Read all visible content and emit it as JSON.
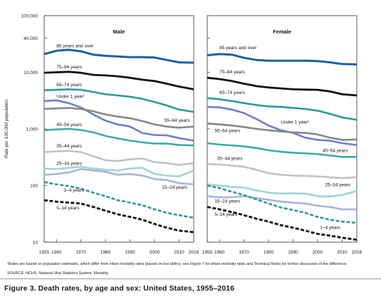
{
  "chart_data": {
    "type": "line",
    "caption": "Figure 3. Death rates, by age and sex: United States, 1955–2016",
    "ylabel": "Rate per 100,000 population",
    "yscale": "log",
    "ylim": [
      10,
      100000
    ],
    "yticks": [
      {
        "value": 10,
        "label": "10"
      },
      {
        "value": 100,
        "label": "100"
      },
      {
        "value": 1000,
        "label": "1,000"
      },
      {
        "value": 10000,
        "label": "10,000"
      },
      {
        "value": 40000,
        "label": "40,000"
      },
      {
        "value": 100000,
        "label": "100,000"
      }
    ],
    "xlim": [
      1955,
      2016
    ],
    "xticks": [
      {
        "value": 1955,
        "label": "1955"
      },
      {
        "value": 1960,
        "label": "1960"
      },
      {
        "value": 1970,
        "label": "1970"
      },
      {
        "value": 1980,
        "label": "1980"
      },
      {
        "value": 1990,
        "label": "1990"
      },
      {
        "value": 2000,
        "label": "2000"
      },
      {
        "value": 2010,
        "label": "2010"
      },
      {
        "value": 2016,
        "label": "2016"
      }
    ],
    "grid": false,
    "x": [
      1955,
      1960,
      1965,
      1970,
      1975,
      1980,
      1985,
      1990,
      1995,
      2000,
      2005,
      2010,
      2016
    ],
    "panels": [
      {
        "title": "Male",
        "series": [
          {
            "name": "85 years and over",
            "color": "#2060a0",
            "width": 3,
            "dash": "solid",
            "values": [
              21000,
              24000,
              25000,
              23500,
              20500,
              19500,
              19000,
              18500,
              18500,
              18200,
              16500,
              15000,
              14800
            ]
          },
          {
            "name": "75–84 years",
            "color": "#111111",
            "width": 2.8,
            "dash": "solid",
            "values": [
              9800,
              10000,
              10200,
              9800,
              9000,
              8800,
              8500,
              8000,
              7400,
              7000,
              6300,
              5600,
              5000
            ]
          },
          {
            "name": "65–74 years",
            "color": "#2a9b97",
            "width": 2.6,
            "dash": "solid",
            "values": [
              4800,
              4900,
              5000,
              4900,
              4500,
              4100,
              3900,
              3700,
              3400,
              3000,
              2600,
              2200,
              2000
            ]
          },
          {
            "name": "Under 1 year¹",
            "color": "#6f7fc8",
            "width": 2.6,
            "dash": "solid",
            "values": [
              3100,
              3200,
              2850,
              2400,
              1800,
              1400,
              1200,
              1100,
              850,
              780,
              770,
              690,
              620
            ]
          },
          {
            "name": "55–64 years",
            "color": "#888888",
            "width": 2.6,
            "dash": "solid",
            "values": [
              2250,
              2300,
              2350,
              2250,
              2050,
              1800,
              1650,
              1550,
              1380,
              1200,
              1100,
              1050,
              1100
            ]
          },
          {
            "name": "45–54 years",
            "color": "#3aaea8",
            "width": 2.6,
            "dash": "solid",
            "values": [
              950,
              980,
              1000,
              960,
              870,
              750,
              680,
              620,
              580,
              550,
              550,
              520,
              510
            ]
          },
          {
            "name": "35–44 years",
            "color": "#c2c2c2",
            "width": 2.6,
            "dash": "solid",
            "values": [
              390,
              400,
              410,
              390,
              330,
              280,
              270,
              290,
              300,
              260,
              250,
              230,
              250
            ]
          },
          {
            "name": "25–34 years",
            "color": "#9fd6d2",
            "width": 2.6,
            "dash": "solid",
            "values": [
              200,
              195,
              205,
              215,
              200,
              190,
              185,
              200,
              205,
              160,
              150,
              145,
              185
            ]
          },
          {
            "name": "15–24 years",
            "color": "#a8b4dc",
            "width": 2.6,
            "dash": "solid",
            "values": [
              155,
              160,
              170,
              195,
              185,
              175,
              155,
              160,
              150,
              130,
              125,
              110,
              105
            ]
          },
          {
            "name": "1–4 years",
            "color": "#2a9b97",
            "width": 2.6,
            "dash": "dash",
            "values": [
              115,
              105,
              98,
              88,
              75,
              65,
              55,
              50,
              45,
              38,
              33,
              30,
              27
            ]
          },
          {
            "name": "5–14 years",
            "color": "#111111",
            "width": 2.8,
            "dash": "dash",
            "values": [
              55,
              52,
              50,
              48,
              42,
              36,
              31,
              28,
              25,
              21,
              18,
              16,
              15
            ]
          }
        ]
      },
      {
        "title": "Female",
        "series": [
          {
            "name": "85 years and over",
            "color": "#2060a0",
            "width": 3,
            "dash": "solid",
            "values": [
              20000,
              21000,
              20500,
              18000,
              16500,
              16000,
              16000,
              16000,
              16000,
              15800,
              15000,
              14000,
              13800
            ]
          },
          {
            "name": "75–84 years",
            "color": "#111111",
            "width": 2.8,
            "dash": "solid",
            "values": [
              8000,
              7600,
              7000,
              6300,
              5700,
              5400,
              5200,
              5000,
              4950,
              4900,
              4600,
              4100,
              3900
            ]
          },
          {
            "name": "65–74 years",
            "color": "#2a9b97",
            "width": 2.6,
            "dash": "solid",
            "values": [
              3500,
              3350,
              3100,
              2850,
              2650,
              2500,
              2450,
              2350,
              2250,
              2100,
              1850,
              1600,
              1450
            ]
          },
          {
            "name": "Under 1 year¹",
            "color": "#6f7fc8",
            "width": 2.6,
            "dash": "solid",
            "values": [
              2450,
              2400,
              2200,
              1900,
              1500,
              1150,
              950,
              850,
              700,
              640,
              620,
              560,
              520
            ]
          },
          {
            "name": "55–64 years",
            "color": "#888888",
            "width": 2.6,
            "dash": "solid",
            "values": [
              1250,
              1200,
              1150,
              1080,
              1000,
              950,
              900,
              870,
              850,
              800,
              700,
              640,
              650
            ]
          },
          {
            "name": "45–54 years",
            "color": "#3aaea8",
            "width": 2.6,
            "dash": "solid",
            "values": [
              560,
              530,
              510,
              490,
              460,
              420,
              395,
              380,
              370,
              360,
              340,
              320,
              320
            ]
          },
          {
            "name": "35–44 years",
            "color": "#c2c2c2",
            "width": 2.6,
            "dash": "solid",
            "values": [
              240,
              235,
              225,
              215,
              190,
              165,
              155,
              150,
              148,
              145,
              140,
              135,
              140
            ]
          },
          {
            "name": "25–34 years",
            "color": "#9fd6d2",
            "width": 2.6,
            "dash": "solid",
            "values": [
              105,
              100,
              95,
              92,
              82,
              75,
              72,
              73,
              72,
              65,
              64,
              68,
              80
            ]
          },
          {
            "name": "15–24 years",
            "color": "#a8b4dc",
            "width": 2.6,
            "dash": "solid",
            "values": [
              65,
              62,
              62,
              65,
              60,
              56,
              52,
              50,
              48,
              44,
              42,
              38,
              38
            ]
          },
          {
            "name": "1–4 years",
            "color": "#2a9b97",
            "width": 2.6,
            "dash": "dash",
            "values": [
              100,
              90,
              78,
              68,
              57,
              48,
              41,
              37,
              33,
              28,
              25,
              23,
              22
            ]
          },
          {
            "name": "5–14 years",
            "color": "#111111",
            "width": 2.8,
            "dash": "dash",
            "values": [
              42,
              38,
              34,
              30,
              26,
              23,
              20,
              18,
              16,
              14,
              13,
              12,
              11
            ]
          }
        ]
      }
    ]
  },
  "footnote": "¹Rates are based on population estimates, which differ from infant mortality rates (based on live births); see Figure 7 for infant mortality rates and Technical Notes for further discussion of the difference.",
  "source": "SOURCE: NCHS, National Vital Statistics System, Mortality."
}
